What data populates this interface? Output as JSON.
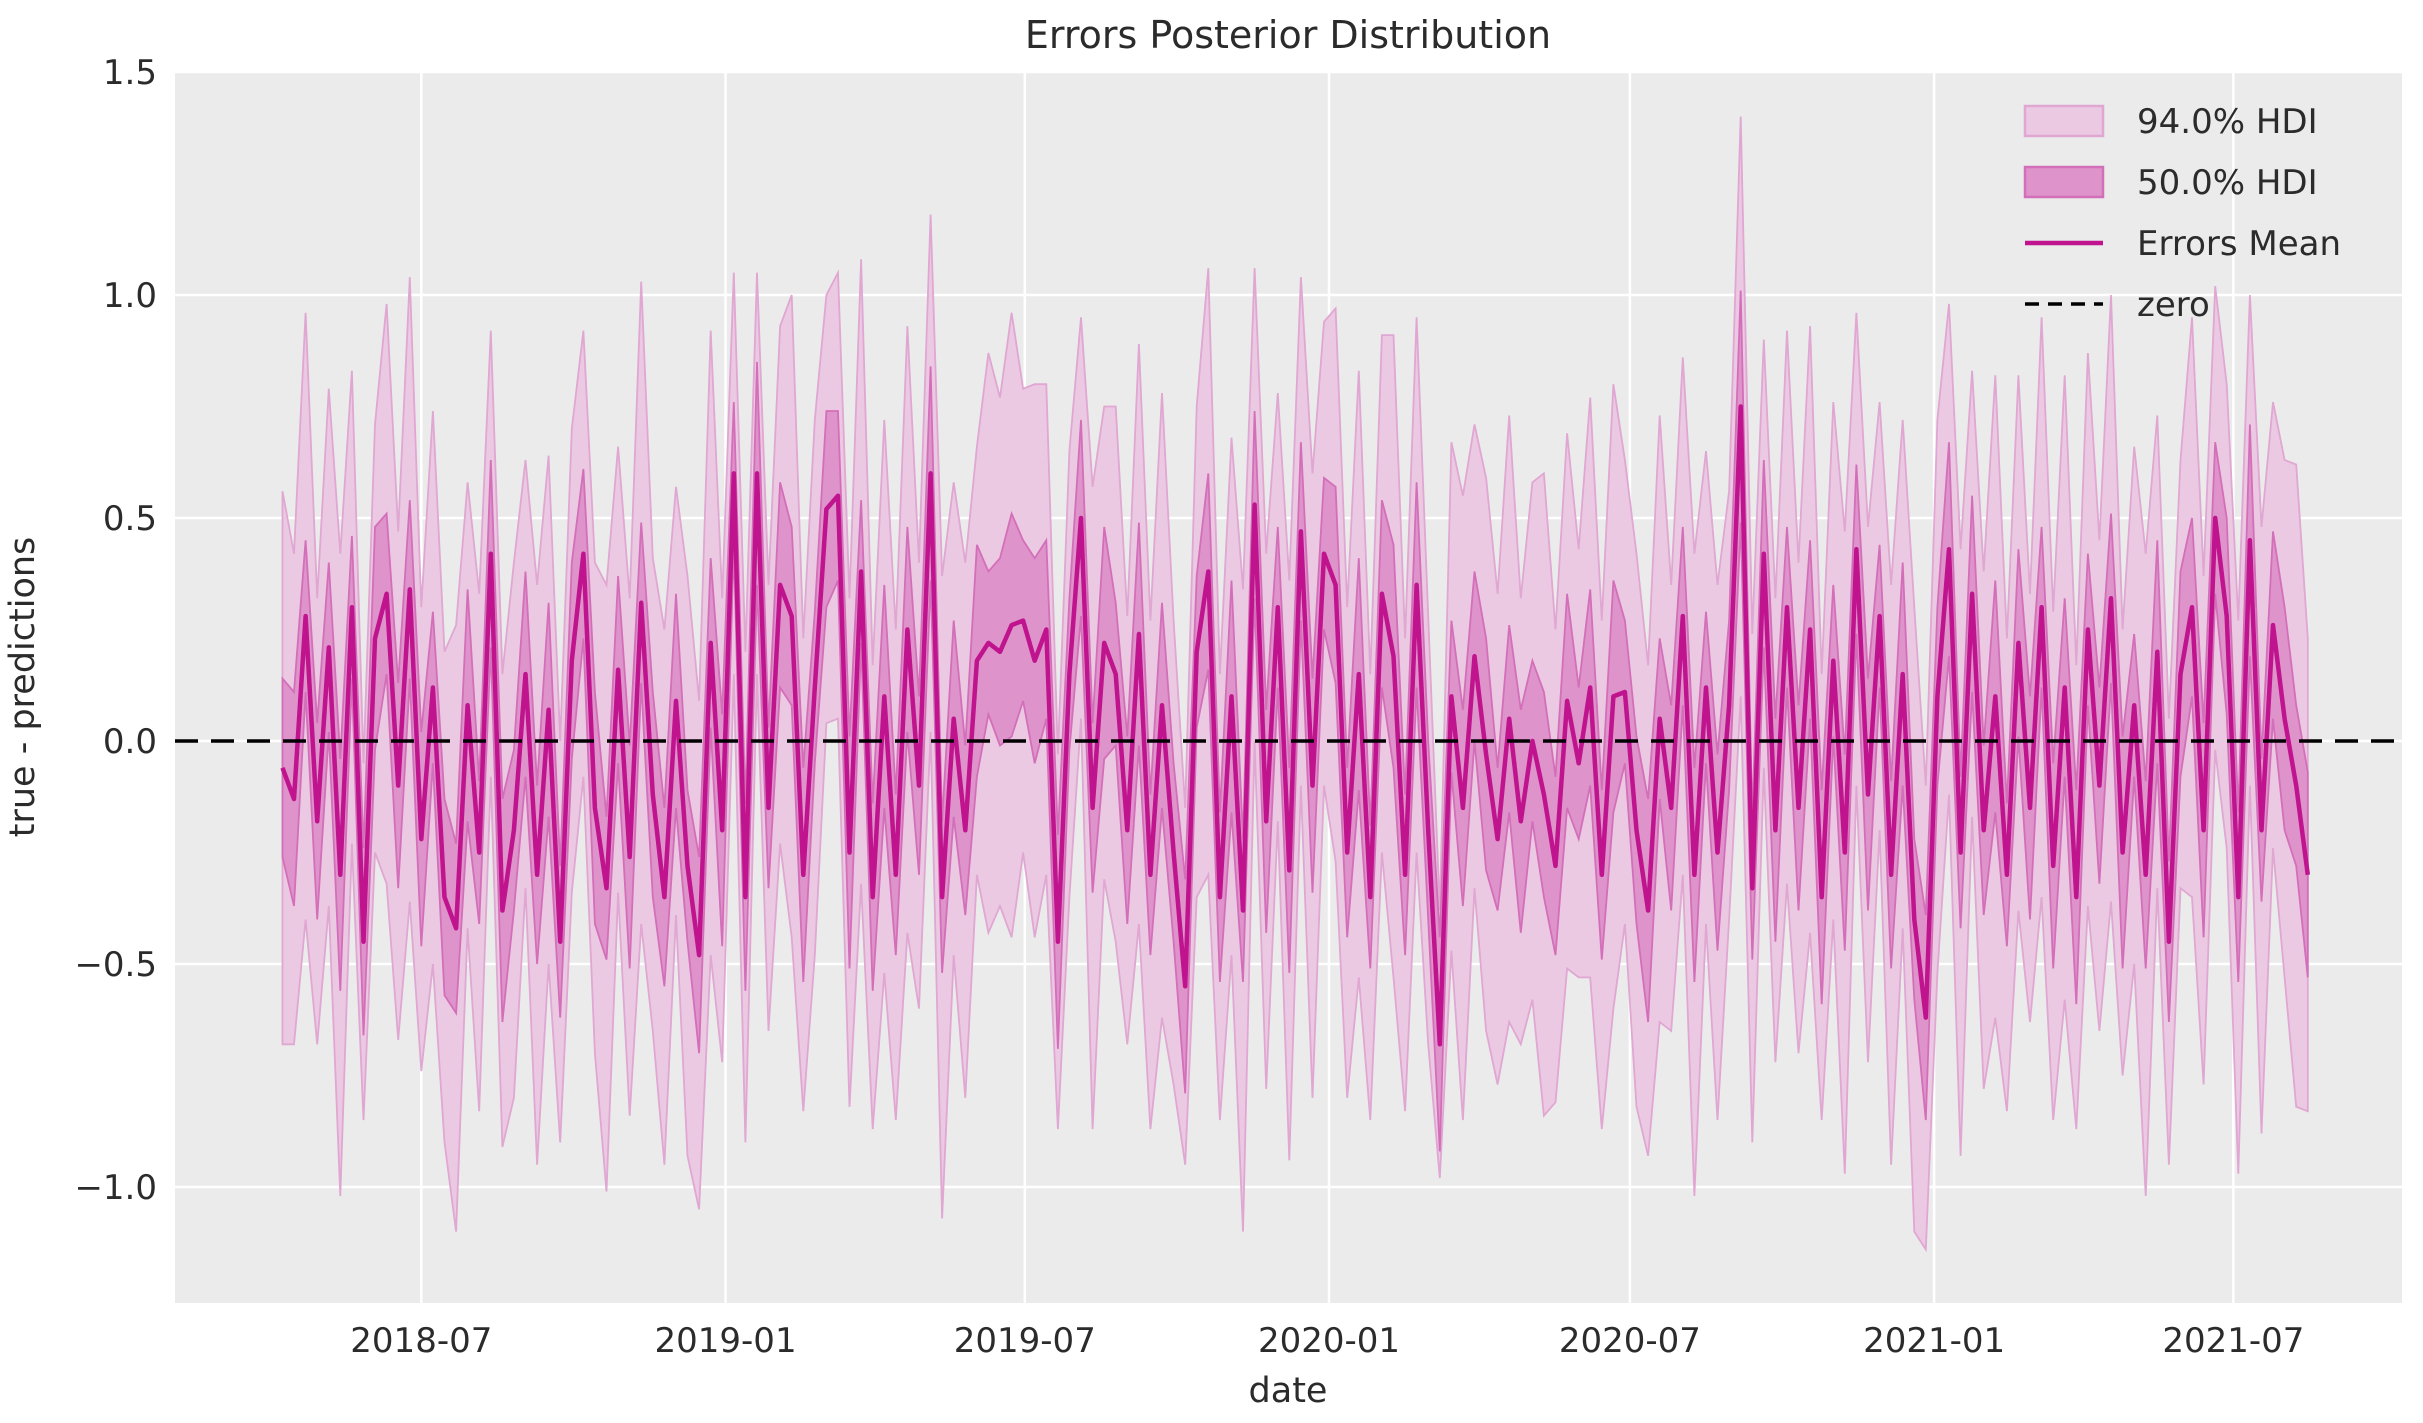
{
  "title": "Errors Posterior Distribution",
  "colors": {
    "figure_bg": "#ffffff",
    "axes_bg": "#ebebeb",
    "grid": "#ffffff",
    "text": "#2b2b2b",
    "hdi94_fill": "#ecc9e2",
    "hdi94_edge": "#dfa7d2",
    "hdi50_fill": "#de93cb",
    "hdi50_edge": "#d36fb9",
    "mean_line": "#c0138e",
    "zero_line": "#000000"
  },
  "legend": {
    "position": "upper right",
    "items": [
      {
        "label": "94.0% HDI",
        "type": "patch"
      },
      {
        "label": "50.0% HDI",
        "type": "patch"
      },
      {
        "label": "Errors Mean",
        "type": "line"
      },
      {
        "label": "zero",
        "type": "dashed_line"
      }
    ]
  },
  "chart_data": {
    "type": "line",
    "title": "Errors Posterior Distribution",
    "xlabel": "date",
    "ylabel": "true - predictions",
    "grid": true,
    "legend_position": "upper right",
    "x_start": "2018-04-08",
    "x_step_days": 7,
    "n_points": 176,
    "xlim": [
      "2018-02-02",
      "2021-10-11"
    ],
    "ylim": [
      -1.26,
      1.5
    ],
    "zero_reference": 0.0,
    "yticks": [
      {
        "value": 1.5,
        "label": "1.5"
      },
      {
        "value": 1.0,
        "label": "1.0"
      },
      {
        "value": 0.5,
        "label": "0.5"
      },
      {
        "value": 0.0,
        "label": "0.0"
      },
      {
        "value": -0.5,
        "label": "−0.5"
      },
      {
        "value": -1.0,
        "label": "−1.0"
      }
    ],
    "xticks": [
      {
        "date": "2018-07-01",
        "label": "2018-07"
      },
      {
        "date": "2019-01-01",
        "label": "2019-01"
      },
      {
        "date": "2019-07-01",
        "label": "2019-07"
      },
      {
        "date": "2020-01-01",
        "label": "2020-01"
      },
      {
        "date": "2020-07-01",
        "label": "2020-07"
      },
      {
        "date": "2021-01-01",
        "label": "2021-01"
      },
      {
        "date": "2021-07-01",
        "label": "2021-07"
      }
    ],
    "series": [
      {
        "name": "Errors Mean",
        "values": [
          -0.06,
          -0.13,
          0.28,
          -0.18,
          0.21,
          -0.3,
          0.3,
          -0.45,
          0.23,
          0.33,
          -0.1,
          0.34,
          -0.22,
          0.12,
          -0.35,
          -0.42,
          0.08,
          -0.25,
          0.42,
          -0.38,
          -0.2,
          0.15,
          -0.3,
          0.07,
          -0.45,
          0.18,
          0.42,
          -0.15,
          -0.33,
          0.16,
          -0.26,
          0.31,
          -0.12,
          -0.35,
          0.09,
          -0.28,
          -0.48,
          0.22,
          -0.2,
          0.6,
          -0.35,
          0.6,
          -0.15,
          0.35,
          0.28,
          -0.3,
          0.12,
          0.52,
          0.55,
          -0.25,
          0.38,
          -0.35,
          0.1,
          -0.3,
          0.25,
          -0.1,
          0.6,
          -0.35,
          0.05,
          -0.2,
          0.18,
          0.22,
          0.2,
          0.26,
          0.27,
          0.18,
          0.25,
          -0.45,
          0.15,
          0.5,
          -0.15,
          0.22,
          0.15,
          -0.2,
          0.24,
          -0.3,
          0.08,
          -0.25,
          -0.55,
          0.2,
          0.38,
          -0.35,
          0.1,
          -0.38,
          0.53,
          -0.18,
          0.3,
          -0.29,
          0.47,
          -0.1,
          0.42,
          0.35,
          -0.25,
          0.15,
          -0.35,
          0.33,
          0.19,
          -0.3,
          0.35,
          -0.2,
          -0.68,
          0.1,
          -0.15,
          0.19,
          -0.03,
          -0.22,
          0.05,
          -0.18,
          0.0,
          -0.12,
          -0.28,
          0.09,
          -0.05,
          0.12,
          -0.3,
          0.1,
          0.11,
          -0.2,
          -0.38,
          0.05,
          -0.15,
          0.28,
          -0.3,
          0.12,
          -0.25,
          0.08,
          0.75,
          -0.33,
          0.42,
          -0.2,
          0.3,
          -0.15,
          0.25,
          -0.35,
          0.18,
          -0.25,
          0.43,
          -0.12,
          0.28,
          -0.3,
          0.15,
          -0.4,
          -0.62,
          0.1,
          0.43,
          -0.25,
          0.33,
          -0.2,
          0.1,
          -0.3,
          0.22,
          -0.15,
          0.3,
          -0.28,
          0.12,
          -0.35,
          0.25,
          -0.1,
          0.32,
          -0.25,
          0.08,
          -0.3,
          0.2,
          -0.45,
          0.15,
          0.3,
          -0.2,
          0.5,
          0.28,
          -0.35,
          0.45,
          -0.2,
          0.26,
          0.05,
          -0.1,
          -0.3
        ]
      },
      {
        "name": "94.0% HDI half-width",
        "values": [
          0.62,
          0.55,
          0.68,
          0.5,
          0.58,
          0.72,
          0.53,
          0.4,
          0.48,
          0.65,
          0.57,
          0.7,
          0.52,
          0.62,
          0.55,
          0.68,
          0.5,
          0.58,
          0.5,
          0.53,
          0.6,
          0.48,
          0.65,
          0.57,
          0.45,
          0.52,
          0.5,
          0.55,
          0.68,
          0.5,
          0.58,
          0.72,
          0.53,
          0.6,
          0.48,
          0.65,
          0.57,
          0.7,
          0.52,
          0.45,
          0.55,
          0.45,
          0.5,
          0.58,
          0.72,
          0.53,
          0.6,
          0.48,
          0.5,
          0.57,
          0.7,
          0.52,
          0.62,
          0.55,
          0.68,
          0.5,
          0.58,
          0.72,
          0.53,
          0.6,
          0.48,
          0.65,
          0.57,
          0.7,
          0.52,
          0.62,
          0.55,
          0.42,
          0.5,
          0.45,
          0.72,
          0.53,
          0.6,
          0.48,
          0.65,
          0.57,
          0.7,
          0.52,
          0.4,
          0.55,
          0.68,
          0.5,
          0.58,
          0.72,
          0.53,
          0.6,
          0.48,
          0.65,
          0.57,
          0.7,
          0.52,
          0.62,
          0.55,
          0.68,
          0.5,
          0.58,
          0.72,
          0.53,
          0.6,
          0.48,
          0.3,
          0.57,
          0.7,
          0.52,
          0.62,
          0.55,
          0.68,
          0.5,
          0.58,
          0.72,
          0.53,
          0.6,
          0.48,
          0.65,
          0.57,
          0.7,
          0.52,
          0.62,
          0.55,
          0.68,
          0.5,
          0.58,
          0.72,
          0.53,
          0.6,
          0.48,
          0.65,
          0.57,
          0.48,
          0.52,
          0.62,
          0.55,
          0.68,
          0.5,
          0.58,
          0.72,
          0.53,
          0.6,
          0.48,
          0.65,
          0.57,
          0.7,
          0.52,
          0.62,
          0.55,
          0.68,
          0.5,
          0.58,
          0.72,
          0.53,
          0.6,
          0.48,
          0.65,
          0.57,
          0.7,
          0.52,
          0.62,
          0.55,
          0.68,
          0.5,
          0.58,
          0.72,
          0.53,
          0.5,
          0.48,
          0.65,
          0.57,
          0.52,
          0.52,
          0.62,
          0.55,
          0.68,
          0.5,
          0.58,
          0.72,
          0.53
        ]
      },
      {
        "name": "50.0% HDI half-width",
        "values": [
          0.2,
          0.24,
          0.17,
          0.22,
          0.19,
          0.26,
          0.16,
          0.21,
          0.25,
          0.18,
          0.23,
          0.2,
          0.24,
          0.17,
          0.22,
          0.19,
          0.26,
          0.16,
          0.21,
          0.25,
          0.18,
          0.23,
          0.2,
          0.24,
          0.17,
          0.22,
          0.19,
          0.26,
          0.16,
          0.21,
          0.25,
          0.18,
          0.23,
          0.2,
          0.24,
          0.17,
          0.22,
          0.19,
          0.26,
          0.16,
          0.21,
          0.25,
          0.18,
          0.23,
          0.2,
          0.24,
          0.17,
          0.22,
          0.19,
          0.26,
          0.16,
          0.21,
          0.25,
          0.18,
          0.23,
          0.2,
          0.24,
          0.17,
          0.22,
          0.19,
          0.26,
          0.16,
          0.21,
          0.25,
          0.18,
          0.23,
          0.2,
          0.24,
          0.17,
          0.22,
          0.19,
          0.26,
          0.16,
          0.21,
          0.25,
          0.18,
          0.23,
          0.2,
          0.24,
          0.17,
          0.22,
          0.19,
          0.26,
          0.16,
          0.21,
          0.25,
          0.18,
          0.23,
          0.2,
          0.24,
          0.17,
          0.22,
          0.19,
          0.26,
          0.16,
          0.21,
          0.25,
          0.18,
          0.23,
          0.2,
          0.24,
          0.17,
          0.22,
          0.19,
          0.26,
          0.16,
          0.21,
          0.25,
          0.18,
          0.23,
          0.2,
          0.24,
          0.17,
          0.22,
          0.19,
          0.26,
          0.16,
          0.21,
          0.25,
          0.18,
          0.23,
          0.2,
          0.24,
          0.17,
          0.22,
          0.19,
          0.26,
          0.16,
          0.21,
          0.25,
          0.18,
          0.23,
          0.2,
          0.24,
          0.17,
          0.22,
          0.19,
          0.26,
          0.16,
          0.21,
          0.25,
          0.18,
          0.23,
          0.2,
          0.24,
          0.17,
          0.22,
          0.19,
          0.26,
          0.16,
          0.21,
          0.25,
          0.18,
          0.23,
          0.2,
          0.24,
          0.17,
          0.22,
          0.19,
          0.26,
          0.16,
          0.21,
          0.25,
          0.18,
          0.23,
          0.2,
          0.24,
          0.17,
          0.22,
          0.19,
          0.26,
          0.16,
          0.21,
          0.25,
          0.18,
          0.23
        ]
      }
    ]
  }
}
